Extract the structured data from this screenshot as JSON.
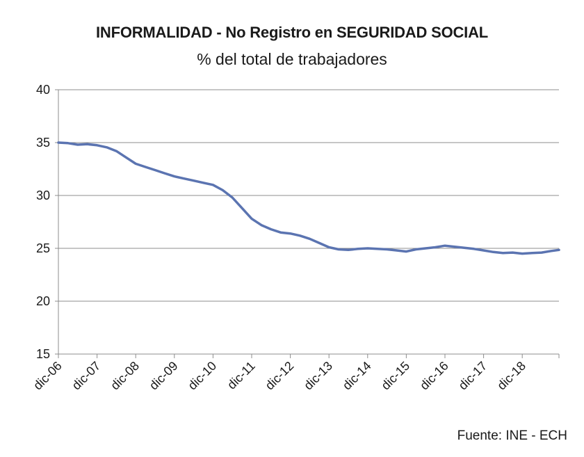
{
  "chart_data": {
    "type": "line",
    "title": "INFORMALIDAD - No Registro en SEGURIDAD SOCIAL",
    "subtitle": "% del total de trabajadores",
    "xlabel": "",
    "ylabel": "",
    "ylim": [
      15,
      40
    ],
    "yticks": [
      15,
      20,
      25,
      30,
      35,
      40
    ],
    "grid": true,
    "categories": [
      "dic-06",
      "dic-07",
      "dic-08",
      "dic-09",
      "dic-10",
      "dic-11",
      "dic-12",
      "dic-13",
      "dic-14",
      "dic-15",
      "dic-16",
      "dic-17",
      "dic-18"
    ],
    "x_end": 12.95,
    "line_color": "#5b74b1",
    "series": [
      {
        "name": "Informalidad",
        "x": [
          0,
          0.25,
          0.5,
          0.75,
          1.0,
          1.25,
          1.5,
          1.75,
          2.0,
          2.25,
          2.5,
          2.75,
          3.0,
          3.25,
          3.5,
          3.75,
          4.0,
          4.25,
          4.5,
          4.75,
          5.0,
          5.25,
          5.5,
          5.75,
          6.0,
          6.25,
          6.5,
          6.75,
          7.0,
          7.25,
          7.5,
          7.75,
          8.0,
          8.25,
          8.5,
          8.75,
          9.0,
          9.25,
          9.5,
          9.75,
          10.0,
          10.25,
          10.5,
          10.75,
          11.0,
          11.25,
          11.5,
          11.75,
          12.0,
          12.25,
          12.5,
          12.75,
          12.95
        ],
        "values": [
          35.0,
          34.95,
          34.8,
          34.85,
          34.75,
          34.55,
          34.2,
          33.6,
          33.0,
          32.7,
          32.4,
          32.1,
          31.8,
          31.6,
          31.4,
          31.2,
          31.0,
          30.5,
          29.8,
          28.8,
          27.8,
          27.2,
          26.8,
          26.5,
          26.4,
          26.2,
          25.9,
          25.5,
          25.1,
          24.9,
          24.85,
          24.95,
          25.0,
          24.95,
          24.9,
          24.8,
          24.7,
          24.9,
          25.0,
          25.1,
          25.25,
          25.15,
          25.05,
          24.95,
          24.8,
          24.65,
          24.55,
          24.6,
          24.5,
          24.55,
          24.6,
          24.75,
          24.85
        ]
      }
    ]
  },
  "source": "Fuente: INE - ECH"
}
